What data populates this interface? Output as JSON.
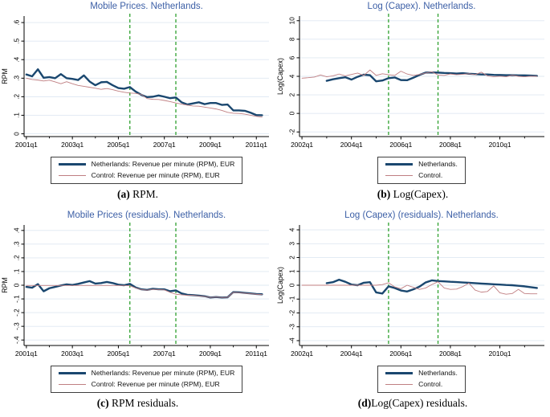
{
  "figure": {
    "background": "#ffffff",
    "colors": {
      "netherlands": "#1a476f",
      "control": "#c07f82",
      "event_line": "#2fa12f",
      "grid": "#dfe8f2",
      "axis": "#000000",
      "title": "#3c5fa6"
    }
  },
  "chart_data": [
    {
      "type": "line",
      "id": "a",
      "title": "Mobile Prices. Netherlands.",
      "caption_marker": "(a)",
      "caption_text": "RPM.",
      "y_label": "RPM",
      "x": {
        "min": 2000.9,
        "max": 2011.55,
        "ticks": [
          {
            "v": 2001,
            "label": "2001q1"
          },
          {
            "v": 2003,
            "label": "2003q1"
          },
          {
            "v": 2005,
            "label": "2005q1"
          },
          {
            "v": 2007,
            "label": "2007q1"
          },
          {
            "v": 2009,
            "label": "2009q1"
          },
          {
            "v": 2011,
            "label": "2011q1"
          }
        ],
        "minor_ticks": [
          2002,
          2004,
          2006,
          2008,
          2010
        ]
      },
      "y": {
        "min": -0.015,
        "max": 0.635,
        "ticks": [
          {
            "v": 0,
            "label": "0"
          },
          {
            "v": 0.1,
            "label": ".1"
          },
          {
            "v": 0.2,
            "label": ".2"
          },
          {
            "v": 0.3,
            "label": ".3"
          },
          {
            "v": 0.4,
            "label": ".4"
          },
          {
            "v": 0.5,
            "label": ".5"
          },
          {
            "v": 0.6,
            "label": ".6"
          }
        ]
      },
      "event_lines": [
        2005.5,
        2007.5
      ],
      "legend": [
        {
          "label": "Netherlands: Revenue per minute (RPM), EUR",
          "color_key": "netherlands",
          "thick": true
        },
        {
          "label": "Control: Revenue per minute (RPM), EUR",
          "color_key": "control",
          "thick": false
        }
      ],
      "series": [
        {
          "name": "Netherlands: Revenue per minute (RPM), EUR",
          "color_key": "netherlands",
          "width": 2.4,
          "x_start": 2001.0,
          "x_step": 0.25,
          "values": [
            0.32,
            0.31,
            0.348,
            0.302,
            0.306,
            0.3,
            0.322,
            0.3,
            0.296,
            0.29,
            0.315,
            0.282,
            0.262,
            0.278,
            0.28,
            0.262,
            0.247,
            0.243,
            0.252,
            0.228,
            0.21,
            0.198,
            0.2,
            0.207,
            0.2,
            0.192,
            0.196,
            0.17,
            0.158,
            0.164,
            0.17,
            0.16,
            0.166,
            0.166,
            0.156,
            0.158,
            0.126,
            0.126,
            0.124,
            0.114,
            0.101,
            0.1
          ]
        },
        {
          "name": "Control: Revenue per minute (RPM), EUR",
          "color_key": "control",
          "width": 0.9,
          "x_start": 2001.0,
          "x_step": 0.25,
          "values": [
            0.3,
            0.293,
            0.29,
            0.285,
            0.289,
            0.28,
            0.27,
            0.281,
            0.27,
            0.261,
            0.256,
            0.251,
            0.246,
            0.24,
            0.244,
            0.238,
            0.23,
            0.224,
            0.22,
            0.218,
            0.212,
            0.19,
            0.186,
            0.185,
            0.18,
            0.174,
            0.166,
            0.16,
            0.155,
            0.15,
            0.149,
            0.144,
            0.139,
            0.134,
            0.126,
            0.116,
            0.111,
            0.11,
            0.106,
            0.1,
            0.094,
            0.09
          ]
        }
      ]
    },
    {
      "type": "line",
      "id": "b",
      "title": "Log (Capex). Netherlands.",
      "caption_marker": "(b)",
      "caption_text": "Log(Capex).",
      "y_label": "Log(Capex)",
      "x": {
        "min": 2001.9,
        "max": 2011.8,
        "ticks": [
          {
            "v": 2002,
            "label": "2002q1"
          },
          {
            "v": 2004,
            "label": "2004q1"
          },
          {
            "v": 2006,
            "label": "2006q1"
          },
          {
            "v": 2008,
            "label": "2008q1"
          },
          {
            "v": 2010,
            "label": "2010q1"
          }
        ],
        "minor_ticks": [
          2003,
          2005,
          2007,
          2009,
          2011
        ]
      },
      "y": {
        "min": -2.5,
        "max": 10.5,
        "ticks": [
          {
            "v": -2,
            "label": "-2"
          },
          {
            "v": 0,
            "label": "0"
          },
          {
            "v": 2,
            "label": "2"
          },
          {
            "v": 4,
            "label": "4"
          },
          {
            "v": 6,
            "label": "6"
          },
          {
            "v": 8,
            "label": "8"
          },
          {
            "v": 10,
            "label": "10"
          }
        ]
      },
      "event_lines": [
        2005.5,
        2007.5
      ],
      "legend": [
        {
          "label": "Netherlands.",
          "color_key": "netherlands",
          "thick": true
        },
        {
          "label": "Control.",
          "color_key": "control",
          "thick": false
        }
      ],
      "series": [
        {
          "name": "Netherlands.",
          "color_key": "netherlands",
          "width": 2.4,
          "x_start": 2003.0,
          "x_step": 0.25,
          "values": [
            3.52,
            3.68,
            3.8,
            3.9,
            3.65,
            3.95,
            4.18,
            4.12,
            3.46,
            3.55,
            3.8,
            3.88,
            3.6,
            3.58,
            3.85,
            4.15,
            4.4,
            4.42,
            4.4,
            4.36,
            4.34,
            4.3,
            4.34,
            4.28,
            4.24,
            4.2,
            4.2,
            4.16,
            4.14,
            4.12,
            4.12,
            4.1,
            4.1,
            4.08,
            4.05
          ]
        },
        {
          "name": "Control.",
          "color_key": "control",
          "width": 0.9,
          "x_start": 2002.0,
          "x_step": 0.25,
          "values": [
            3.8,
            3.85,
            3.92,
            4.15,
            3.95,
            4.05,
            4.25,
            4.05,
            4.2,
            4.35,
            4.1,
            4.68,
            4.1,
            4.28,
            4.18,
            4.1,
            4.55,
            4.25,
            4.1,
            4.2,
            4.35,
            4.48,
            4.15,
            4.1,
            4.25,
            4.18,
            4.22,
            4.28,
            4.18,
            4.45,
            4.05,
            3.95,
            4.02,
            3.95,
            4.12,
            4.0,
            3.95,
            4.02,
            4.0
          ]
        }
      ]
    },
    {
      "type": "line",
      "id": "c",
      "title": "Mobile Prices (residuals). Netherlands.",
      "caption_marker": "(c)",
      "caption_text": "RPM residuals.",
      "y_label": "RPM",
      "x": {
        "min": 2000.9,
        "max": 2011.55,
        "ticks": [
          {
            "v": 2001,
            "label": "2001q1"
          },
          {
            "v": 2003,
            "label": "2003q1"
          },
          {
            "v": 2005,
            "label": "2005q1"
          },
          {
            "v": 2007,
            "label": "2007q1"
          },
          {
            "v": 2009,
            "label": "2009q1"
          },
          {
            "v": 2011,
            "label": "2011q1"
          }
        ],
        "minor_ticks": [
          2002,
          2004,
          2006,
          2008,
          2010
        ]
      },
      "y": {
        "min": -0.44,
        "max": 0.44,
        "ticks": [
          {
            "v": -0.4,
            "label": "-.4"
          },
          {
            "v": -0.3,
            "label": "-.3"
          },
          {
            "v": -0.2,
            "label": "-.2"
          },
          {
            "v": -0.1,
            "label": "-.1"
          },
          {
            "v": 0,
            "label": "0"
          },
          {
            "v": 0.1,
            "label": ".1"
          },
          {
            "v": 0.2,
            "label": ".2"
          },
          {
            "v": 0.3,
            "label": ".3"
          },
          {
            "v": 0.4,
            "label": ".4"
          }
        ]
      },
      "event_lines": [
        2005.5,
        2007.5
      ],
      "legend": [
        {
          "label": "Netherlands: Revenue per minute (RPM), EUR",
          "color_key": "netherlands",
          "thick": true
        },
        {
          "label": "Control: Revenue per minute (RPM), EUR",
          "color_key": "control",
          "thick": false
        }
      ],
      "series": [
        {
          "name": "Netherlands: Revenue per minute (RPM), EUR",
          "color_key": "netherlands",
          "width": 2.4,
          "x_start": 2001.0,
          "x_step": 0.25,
          "values": [
            -0.012,
            -0.018,
            0.008,
            -0.044,
            -0.022,
            -0.012,
            -0.002,
            0.006,
            0.002,
            0.01,
            0.02,
            0.03,
            0.012,
            0.016,
            0.024,
            0.016,
            0.004,
            0.0,
            0.01,
            -0.016,
            -0.03,
            -0.034,
            -0.026,
            -0.03,
            -0.03,
            -0.044,
            -0.038,
            -0.06,
            -0.07,
            -0.072,
            -0.076,
            -0.08,
            -0.09,
            -0.086,
            -0.09,
            -0.088,
            -0.05,
            -0.052,
            -0.056,
            -0.06,
            -0.064,
            -0.066
          ]
        },
        {
          "name": "Control: Revenue per minute (RPM), EUR",
          "color_key": "control",
          "width": 0.9,
          "x_start": 2001.0,
          "x_step": 0.25,
          "values": [
            -0.002,
            -0.002,
            -0.002,
            -0.002,
            -0.002,
            -0.002,
            -0.002,
            -0.002,
            -0.002,
            -0.002,
            -0.002,
            -0.002,
            -0.002,
            -0.002,
            -0.002,
            -0.002,
            -0.002,
            -0.002,
            -0.004,
            -0.02,
            -0.032,
            -0.036,
            -0.03,
            -0.032,
            -0.034,
            -0.052,
            -0.066,
            -0.07,
            -0.074,
            -0.074,
            -0.078,
            -0.082,
            -0.09,
            -0.086,
            -0.09,
            -0.088,
            -0.052,
            -0.054,
            -0.058,
            -0.062,
            -0.066,
            -0.068
          ]
        }
      ]
    },
    {
      "type": "line",
      "id": "d",
      "title": "Log (Capex) (residuals). Netherlands.",
      "caption_marker": "(d)",
      "caption_text": "Log(Capex) residuals.",
      "y_label": "Log(Capex)",
      "x": {
        "min": 2001.9,
        "max": 2011.8,
        "ticks": [
          {
            "v": 2002,
            "label": "2002q1"
          },
          {
            "v": 2004,
            "label": "2004q1"
          },
          {
            "v": 2006,
            "label": "2006q1"
          },
          {
            "v": 2008,
            "label": "2008q1"
          },
          {
            "v": 2010,
            "label": "2010q1"
          }
        ],
        "minor_ticks": [
          2003,
          2005,
          2007,
          2009,
          2011
        ]
      },
      "y": {
        "min": -4.35,
        "max": 4.35,
        "ticks": [
          {
            "v": -4,
            "label": "-4"
          },
          {
            "v": -3,
            "label": "-3"
          },
          {
            "v": -2,
            "label": "-2"
          },
          {
            "v": -1,
            "label": "-1"
          },
          {
            "v": 0,
            "label": "0"
          },
          {
            "v": 1,
            "label": "1"
          },
          {
            "v": 2,
            "label": "2"
          },
          {
            "v": 3,
            "label": "3"
          },
          {
            "v": 4,
            "label": "4"
          }
        ]
      },
      "event_lines": [
        2005.5,
        2007.5
      ],
      "legend": [
        {
          "label": "Netherlands.",
          "color_key": "netherlands",
          "thick": true
        },
        {
          "label": "Control.",
          "color_key": "control",
          "thick": false
        }
      ],
      "series": [
        {
          "name": "Netherlands.",
          "color_key": "netherlands",
          "width": 2.4,
          "x_start": 2003.0,
          "x_step": 0.25,
          "values": [
            0.15,
            0.22,
            0.4,
            0.25,
            0.05,
            0.0,
            0.18,
            0.22,
            -0.52,
            -0.6,
            -0.08,
            -0.2,
            -0.38,
            -0.45,
            -0.3,
            -0.1,
            0.2,
            0.35,
            0.3,
            0.28,
            0.25,
            0.23,
            0.2,
            0.18,
            0.15,
            0.12,
            0.1,
            0.07,
            0.05,
            0.02,
            0.0,
            -0.04,
            -0.08,
            -0.14,
            -0.2
          ]
        },
        {
          "name": "Control.",
          "color_key": "control",
          "width": 0.9,
          "x_start": 2002.0,
          "x_step": 0.25,
          "values": [
            0.0,
            0.0,
            0.0,
            0.0,
            0.0,
            0.0,
            0.0,
            0.0,
            0.0,
            0.0,
            0.0,
            0.0,
            0.0,
            0.05,
            0.18,
            -0.12,
            -0.25,
            0.0,
            -0.15,
            -0.3,
            -0.2,
            0.05,
            0.25,
            -0.2,
            -0.3,
            -0.28,
            -0.1,
            0.15,
            -0.35,
            -0.5,
            -0.45,
            -0.05,
            -0.55,
            -0.65,
            -0.6,
            -0.3,
            -0.6,
            -0.62,
            -0.62
          ]
        }
      ]
    }
  ]
}
